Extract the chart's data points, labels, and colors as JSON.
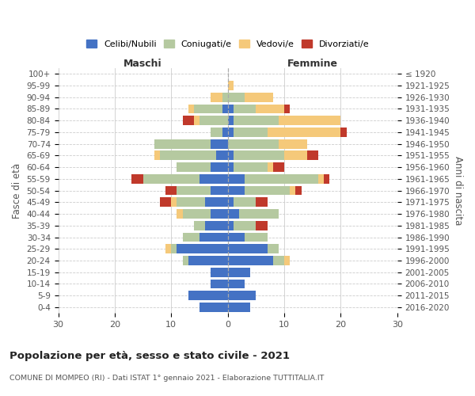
{
  "age_groups": [
    "0-4",
    "5-9",
    "10-14",
    "15-19",
    "20-24",
    "25-29",
    "30-34",
    "35-39",
    "40-44",
    "45-49",
    "50-54",
    "55-59",
    "60-64",
    "65-69",
    "70-74",
    "75-79",
    "80-84",
    "85-89",
    "90-94",
    "95-99",
    "100+"
  ],
  "birth_years": [
    "2016-2020",
    "2011-2015",
    "2006-2010",
    "2001-2005",
    "1996-2000",
    "1991-1995",
    "1986-1990",
    "1981-1985",
    "1976-1980",
    "1971-1975",
    "1966-1970",
    "1961-1965",
    "1956-1960",
    "1951-1955",
    "1946-1950",
    "1941-1945",
    "1936-1940",
    "1931-1935",
    "1926-1930",
    "1921-1925",
    "≤ 1920"
  ],
  "male": {
    "celibi": [
      5,
      7,
      3,
      3,
      7,
      9,
      5,
      4,
      3,
      4,
      3,
      5,
      3,
      2,
      3,
      1,
      0,
      1,
      0,
      0,
      0
    ],
    "coniugati": [
      0,
      0,
      0,
      0,
      1,
      1,
      3,
      2,
      5,
      5,
      6,
      10,
      6,
      10,
      10,
      2,
      5,
      5,
      1,
      0,
      0
    ],
    "vedovi": [
      0,
      0,
      0,
      0,
      0,
      1,
      0,
      0,
      1,
      1,
      0,
      0,
      0,
      1,
      0,
      0,
      1,
      1,
      2,
      0,
      0
    ],
    "divorziati": [
      0,
      0,
      0,
      0,
      0,
      0,
      0,
      0,
      0,
      2,
      2,
      2,
      0,
      0,
      0,
      0,
      2,
      0,
      0,
      0,
      0
    ]
  },
  "female": {
    "nubili": [
      4,
      5,
      3,
      4,
      8,
      7,
      3,
      1,
      2,
      1,
      3,
      3,
      1,
      1,
      0,
      1,
      1,
      1,
      0,
      0,
      0
    ],
    "coniugate": [
      0,
      0,
      0,
      0,
      2,
      2,
      4,
      4,
      7,
      4,
      8,
      13,
      6,
      9,
      9,
      6,
      8,
      4,
      3,
      0,
      0
    ],
    "vedove": [
      0,
      0,
      0,
      0,
      1,
      0,
      0,
      0,
      0,
      0,
      1,
      1,
      1,
      4,
      5,
      13,
      11,
      5,
      5,
      1,
      0
    ],
    "divorziate": [
      0,
      0,
      0,
      0,
      0,
      0,
      0,
      2,
      0,
      2,
      1,
      1,
      2,
      2,
      0,
      1,
      0,
      1,
      0,
      0,
      0
    ]
  },
  "colors": {
    "celibi": "#4472c4",
    "coniugati": "#b5c9a0",
    "vedovi": "#f5c97a",
    "divorziati": "#c0392b"
  },
  "title": "Popolazione per età, sesso e stato civile - 2021",
  "subtitle": "COMUNE DI MOMPEO (RI) - Dati ISTAT 1° gennaio 2021 - Elaborazione TUTTITALIA.IT",
  "xlabel_left": "Maschi",
  "xlabel_right": "Femmine",
  "ylabel_left": "Fasce di età",
  "ylabel_right": "Anni di nascita",
  "xlim": 30,
  "background_color": "#ffffff",
  "legend_labels": [
    "Celibi/Nubili",
    "Coniugati/e",
    "Vedovi/e",
    "Divorziati/e"
  ]
}
